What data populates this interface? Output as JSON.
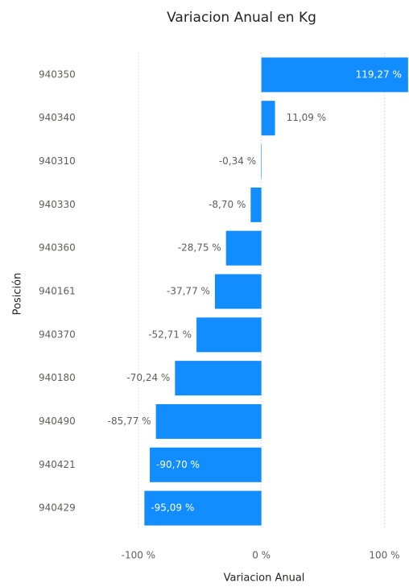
{
  "chart_data": {
    "type": "hbar",
    "title": "Variacion Anual en Kg",
    "x_label": "Variacion Anual",
    "y_label": "Posición",
    "categories": [
      "940350",
      "940340",
      "940310",
      "940330",
      "940360",
      "940161",
      "940370",
      "940180",
      "940490",
      "940421",
      "940429"
    ],
    "values": [
      119.27,
      11.09,
      -0.34,
      -8.7,
      -28.75,
      -37.77,
      -52.71,
      -70.24,
      -85.77,
      -90.7,
      -95.09
    ],
    "value_labels": [
      "119,27 %",
      "11,09 %",
      "-0,34 %",
      "-8,70 %",
      "-28,75 %",
      "-37,77 %",
      "-52,71 %",
      "-70,24 %",
      "-85,77 %",
      "-90,70 %",
      "-95,09 %"
    ],
    "color": "#118dff",
    "xlim": [
      -130,
      120
    ],
    "xticks": [
      {
        "value": -100,
        "label": "-100 %"
      },
      {
        "value": 0,
        "label": "0 %"
      },
      {
        "value": 100,
        "label": "100 %"
      }
    ],
    "grid": true
  }
}
